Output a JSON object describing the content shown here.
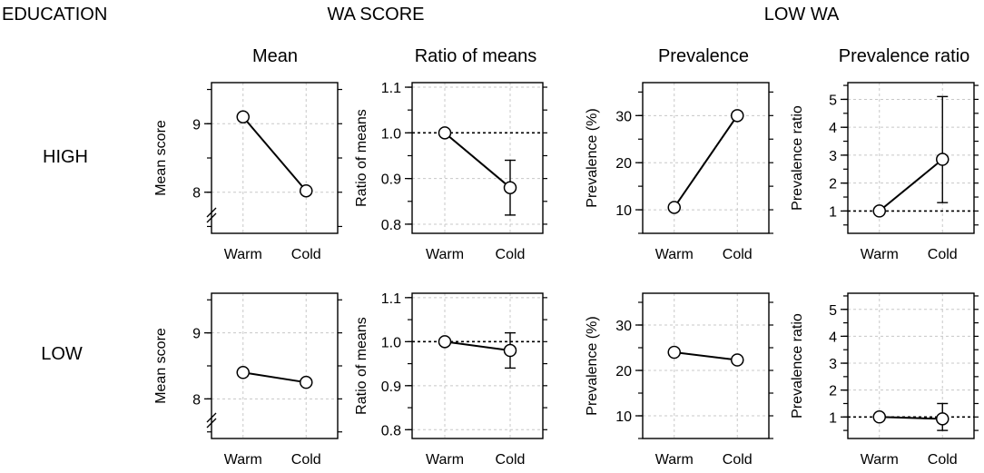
{
  "headers": {
    "education": "EDUCATION",
    "wa_score": "WA SCORE",
    "low_wa": "LOW WA"
  },
  "row_labels": [
    "HIGH",
    "LOW"
  ],
  "column_titles": [
    "Mean",
    "Ratio of means",
    "Prevalence",
    "Prevalence ratio"
  ],
  "colors": {
    "line": "#000000",
    "grid": "#c8c8c8",
    "marker_fill": "#ffffff"
  },
  "chart_data": [
    {
      "id": "high-mean",
      "type": "line",
      "row": "HIGH",
      "title": "Mean",
      "ylabel": "Mean score",
      "categories": [
        "Warm",
        "Cold"
      ],
      "values": [
        9.1,
        8.02
      ],
      "ylim": [
        7.4,
        9.6
      ],
      "yticks": [
        8,
        9
      ],
      "ytick_labels": [
        "8",
        "9"
      ],
      "axis_break": true,
      "grid": true
    },
    {
      "id": "high-ratio",
      "type": "line",
      "row": "HIGH",
      "title": "Ratio of means",
      "ylabel": "Ratio of means",
      "categories": [
        "Warm",
        "Cold"
      ],
      "values": [
        1.0,
        0.88
      ],
      "error_bars": [
        null,
        [
          0.82,
          0.94
        ]
      ],
      "ylim": [
        0.78,
        1.11
      ],
      "yticks": [
        0.8,
        0.9,
        1.0,
        1.1
      ],
      "ytick_labels": [
        "0.8",
        "0.9",
        "1.0",
        "1.1"
      ],
      "reference_line": 1.0,
      "grid": true
    },
    {
      "id": "high-prev",
      "type": "line",
      "row": "HIGH",
      "title": "Prevalence",
      "ylabel": "Prevalence (%)",
      "categories": [
        "Warm",
        "Cold"
      ],
      "values": [
        10.5,
        30.0
      ],
      "ylim": [
        5,
        37
      ],
      "yticks": [
        10,
        20,
        30
      ],
      "ytick_labels": [
        "10",
        "20",
        "30"
      ],
      "grid": true
    },
    {
      "id": "high-pr",
      "type": "line",
      "row": "HIGH",
      "title": "Prevalence ratio",
      "ylabel": "Prevalence ratio",
      "categories": [
        "Warm",
        "Cold"
      ],
      "values": [
        1.0,
        2.85
      ],
      "error_bars": [
        null,
        [
          1.3,
          5.1
        ]
      ],
      "ylim": [
        0.2,
        5.6
      ],
      "yticks": [
        1,
        2,
        3,
        4,
        5
      ],
      "ytick_labels": [
        "1",
        "2",
        "3",
        "4",
        "5"
      ],
      "reference_line": 1.0,
      "grid": true
    },
    {
      "id": "low-mean",
      "type": "line",
      "row": "LOW",
      "title": "Mean",
      "ylabel": "Mean score",
      "categories": [
        "Warm",
        "Cold"
      ],
      "values": [
        8.4,
        8.25
      ],
      "ylim": [
        7.4,
        9.6
      ],
      "yticks": [
        8,
        9
      ],
      "ytick_labels": [
        "8",
        "9"
      ],
      "axis_break": true,
      "grid": true
    },
    {
      "id": "low-ratio",
      "type": "line",
      "row": "LOW",
      "title": "Ratio of means",
      "ylabel": "Ratio of means",
      "categories": [
        "Warm",
        "Cold"
      ],
      "values": [
        1.0,
        0.98
      ],
      "error_bars": [
        null,
        [
          0.94,
          1.02
        ]
      ],
      "ylim": [
        0.78,
        1.11
      ],
      "yticks": [
        0.8,
        0.9,
        1.0,
        1.1
      ],
      "ytick_labels": [
        "0.8",
        "0.9",
        "1.0",
        "1.1"
      ],
      "reference_line": 1.0,
      "grid": true
    },
    {
      "id": "low-prev",
      "type": "line",
      "row": "LOW",
      "title": "Prevalence",
      "ylabel": "Prevalence (%)",
      "categories": [
        "Warm",
        "Cold"
      ],
      "values": [
        24.0,
        22.3
      ],
      "ylim": [
        5,
        37
      ],
      "yticks": [
        10,
        20,
        30
      ],
      "ytick_labels": [
        "10",
        "20",
        "30"
      ],
      "grid": true
    },
    {
      "id": "low-pr",
      "type": "line",
      "row": "LOW",
      "title": "Prevalence ratio",
      "ylabel": "Prevalence ratio",
      "categories": [
        "Warm",
        "Cold"
      ],
      "values": [
        1.0,
        0.93
      ],
      "error_bars": [
        null,
        [
          0.5,
          1.5
        ]
      ],
      "ylim": [
        0.2,
        5.6
      ],
      "yticks": [
        1,
        2,
        3,
        4,
        5
      ],
      "ytick_labels": [
        "1",
        "2",
        "3",
        "4",
        "5"
      ],
      "reference_line": 1.0,
      "grid": true
    }
  ]
}
